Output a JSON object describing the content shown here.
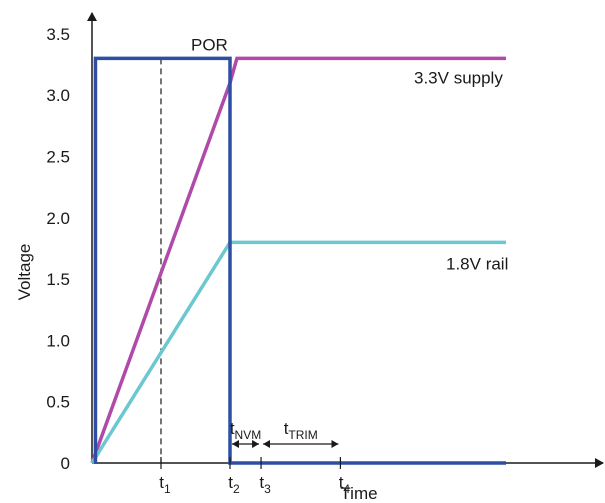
{
  "chart_data": {
    "type": "line",
    "title": "",
    "xlabel": "Time",
    "ylabel": "Voltage",
    "ylim": [
      0,
      3.5
    ],
    "y_ticks": [
      "0",
      "0.5",
      "1.0",
      "1.5",
      "2.0",
      "2.5",
      "3.0",
      "3.5"
    ],
    "y_tick_values": [
      0,
      0.5,
      1.0,
      1.5,
      2.0,
      2.5,
      3.0,
      3.5
    ],
    "x_ticks": [
      {
        "id": "t1",
        "base": "t",
        "sub": "1"
      },
      {
        "id": "t2",
        "base": "t",
        "sub": "2"
      },
      {
        "id": "t3",
        "base": "t",
        "sub": "3"
      },
      {
        "id": "t4",
        "base": "t",
        "sub": "4"
      }
    ],
    "x_tick_times": {
      "t1": 1.0,
      "t2": 2.0,
      "t3": 2.45,
      "t4": 3.6
    },
    "series": [
      {
        "name": "3.3V supply",
        "color": "#b04aa8",
        "points": [
          [
            0.0,
            0.0
          ],
          [
            2.0,
            3.1
          ],
          [
            2.1,
            3.3
          ],
          [
            6.0,
            3.3
          ]
        ]
      },
      {
        "name": "1.8V rail",
        "color": "#6cc8d0",
        "points": [
          [
            0.0,
            0.0
          ],
          [
            2.0,
            1.8
          ],
          [
            6.0,
            1.8
          ]
        ]
      },
      {
        "name": "POR",
        "color": "#2c4fa3",
        "points": [
          [
            0.05,
            0.0
          ],
          [
            0.05,
            3.3
          ],
          [
            2.0,
            3.3
          ],
          [
            2.0,
            0.0
          ],
          [
            6.0,
            0.0
          ]
        ]
      }
    ],
    "annotations": {
      "dashed_line_at": "t1",
      "intervals": [
        {
          "id": "nvm",
          "from": "t2",
          "to": "t3",
          "base": "t",
          "sub": "NVM"
        },
        {
          "id": "trim",
          "from": "t3",
          "to": "t4",
          "base": "t",
          "sub": "TRIM"
        }
      ]
    },
    "grid": false,
    "legend": "none"
  }
}
